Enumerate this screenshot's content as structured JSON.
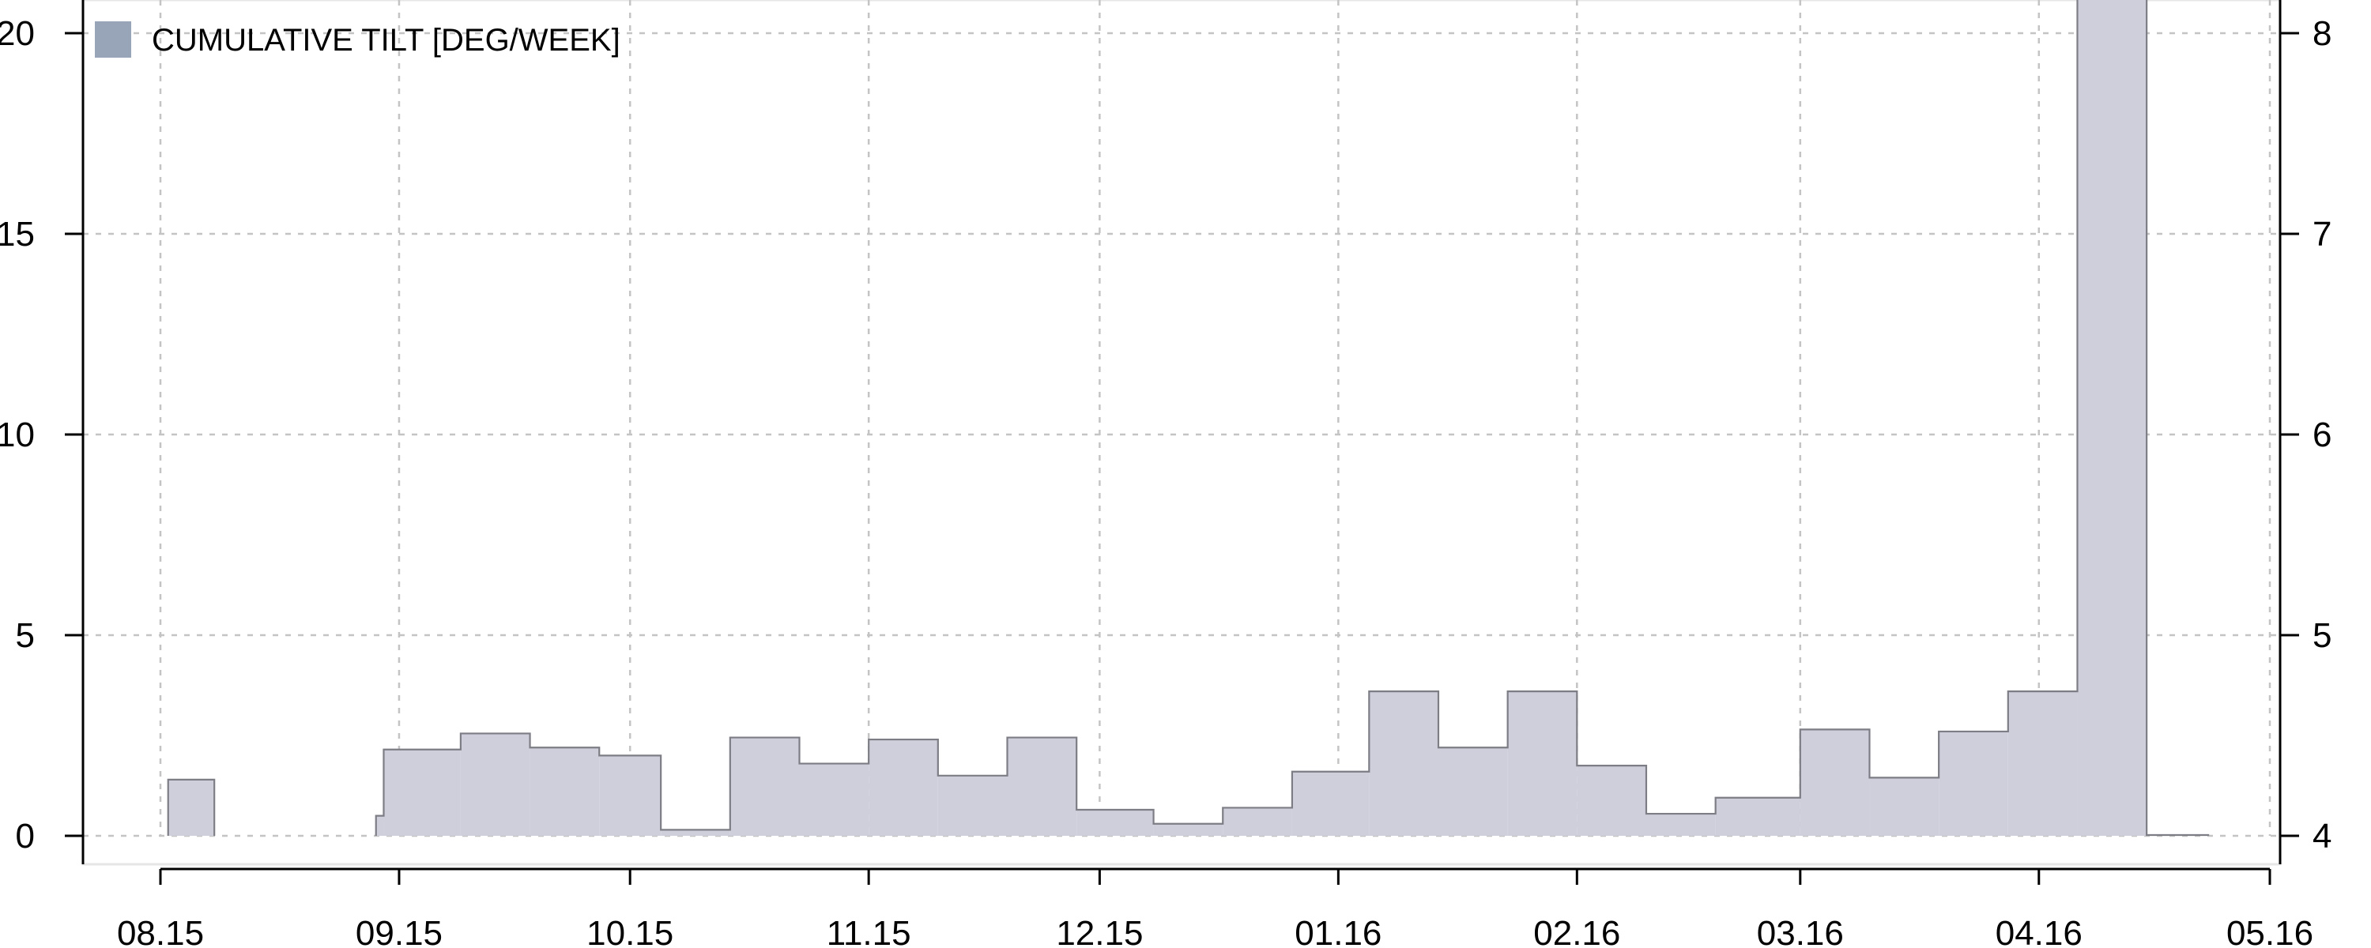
{
  "chart_data": {
    "type": "bar",
    "legend": {
      "label": "CUMULATIVE TILT [DEG/WEEK]",
      "placement": "top-left",
      "swatch_color": "#98a4b8"
    },
    "fill_color": "#cfcfdb",
    "stroke_color": "#7d7d86",
    "grid": true,
    "x_axis": {
      "type": "date",
      "range": [
        "2015-08-01",
        "2016-05-01"
      ],
      "ticks": [
        {
          "date": "2015-08-01",
          "label": "08.15"
        },
        {
          "date": "2015-09-01",
          "label": "09.15"
        },
        {
          "date": "2015-10-01",
          "label": "10.15"
        },
        {
          "date": "2015-11-01",
          "label": "11.15"
        },
        {
          "date": "2015-12-01",
          "label": "12.15"
        },
        {
          "date": "2016-01-01",
          "label": "01.16"
        },
        {
          "date": "2016-02-01",
          "label": "02.16"
        },
        {
          "date": "2016-03-01",
          "label": "03.16"
        },
        {
          "date": "2016-04-01",
          "label": "04.16"
        },
        {
          "date": "2016-05-01",
          "label": "05.16"
        }
      ]
    },
    "y_axis_left": {
      "range": [
        0,
        20
      ],
      "ticks": [
        "0",
        "5",
        "10",
        "15",
        "20"
      ]
    },
    "y_axis_right": {
      "range": [
        4,
        8
      ],
      "ticks": [
        "4",
        "5",
        "6",
        "7",
        "8"
      ]
    },
    "bars": [
      {
        "start": "2015-08-02",
        "end": "2015-08-08",
        "value": 1.4
      },
      {
        "start": "2015-08-29",
        "end": "2015-08-30",
        "value": 0.5
      },
      {
        "start": "2015-08-30",
        "end": "2015-09-09",
        "value": 2.15
      },
      {
        "start": "2015-09-09",
        "end": "2015-09-18",
        "value": 2.55
      },
      {
        "start": "2015-09-18",
        "end": "2015-09-27",
        "value": 2.2
      },
      {
        "start": "2015-09-27",
        "end": "2015-10-05",
        "value": 2.0
      },
      {
        "start": "2015-10-05",
        "end": "2015-10-14",
        "value": 0.15
      },
      {
        "start": "2015-10-14",
        "end": "2015-10-23",
        "value": 2.45
      },
      {
        "start": "2015-10-23",
        "end": "2015-11-01",
        "value": 1.8
      },
      {
        "start": "2015-11-01",
        "end": "2015-11-10",
        "value": 2.4
      },
      {
        "start": "2015-11-10",
        "end": "2015-11-19",
        "value": 1.5
      },
      {
        "start": "2015-11-19",
        "end": "2015-11-28",
        "value": 2.45
      },
      {
        "start": "2015-11-28",
        "end": "2015-12-08",
        "value": 0.65
      },
      {
        "start": "2015-12-08",
        "end": "2015-12-17",
        "value": 0.3
      },
      {
        "start": "2015-12-17",
        "end": "2015-12-26",
        "value": 0.7
      },
      {
        "start": "2015-12-26",
        "end": "2016-01-05",
        "value": 1.6
      },
      {
        "start": "2016-01-05",
        "end": "2016-01-14",
        "value": 3.6
      },
      {
        "start": "2016-01-14",
        "end": "2016-01-23",
        "value": 2.2
      },
      {
        "start": "2016-01-23",
        "end": "2016-02-01",
        "value": 3.6
      },
      {
        "start": "2016-02-01",
        "end": "2016-02-10",
        "value": 1.75
      },
      {
        "start": "2016-02-10",
        "end": "2016-02-19",
        "value": 0.55
      },
      {
        "start": "2016-02-19",
        "end": "2016-03-01",
        "value": 0.95
      },
      {
        "start": "2016-03-01",
        "end": "2016-03-10",
        "value": 2.65
      },
      {
        "start": "2016-03-10",
        "end": "2016-03-19",
        "value": 1.45
      },
      {
        "start": "2016-03-19",
        "end": "2016-03-28",
        "value": 2.6
      },
      {
        "start": "2016-03-28",
        "end": "2016-04-06",
        "value": 3.6
      },
      {
        "start": "2016-04-06",
        "end": "2016-04-15",
        "value": 21
      },
      {
        "start": "2016-04-15",
        "end": "2016-04-23",
        "value": 0.02
      }
    ]
  }
}
